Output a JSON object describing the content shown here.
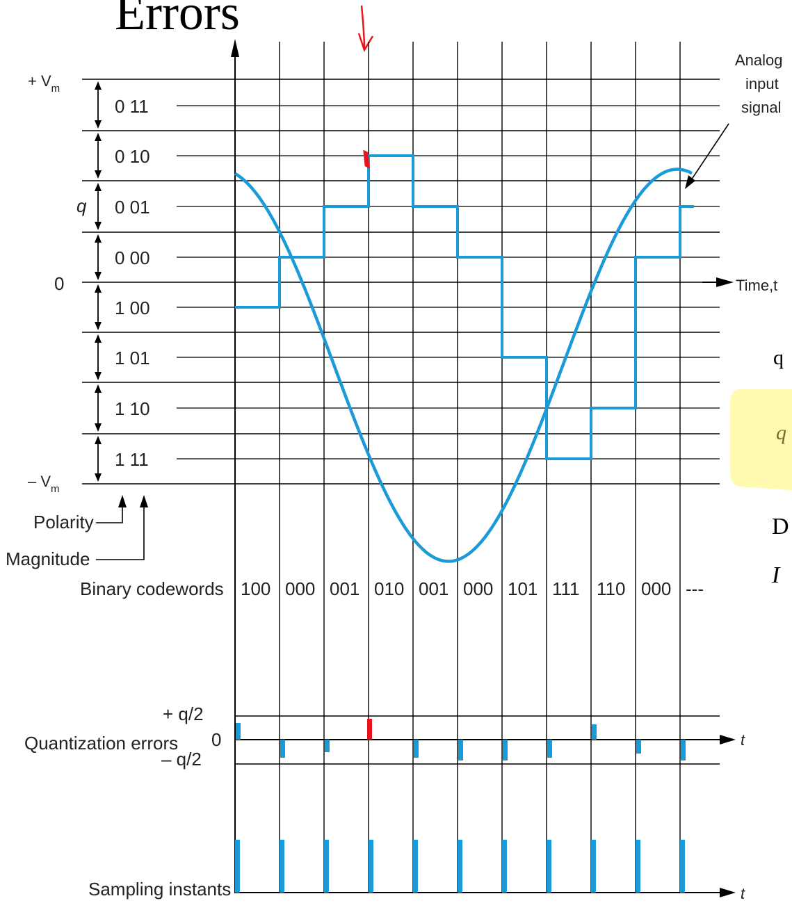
{
  "title_fragment": "Errors",
  "levels": {
    "top_label": "+ V",
    "top_sub": "m",
    "bottom_label": "– V",
    "bottom_sub": "m",
    "zero_label": "0",
    "q_label": "q",
    "codes": [
      "0 11",
      "0 10",
      "0 01",
      "0 00",
      "1 00",
      "1 01",
      "1 10",
      "1 11"
    ]
  },
  "annotations": {
    "analog_line1": "Analog",
    "analog_line2": "input",
    "analog_line3": "signal",
    "time_label": "Time,t",
    "polarity": "Polarity",
    "magnitude": "Magnitude"
  },
  "codewords": {
    "label": "Binary codewords",
    "values": [
      "100",
      "000",
      "001",
      "010",
      "001",
      "000",
      "101",
      "111",
      "110",
      "000",
      "---"
    ]
  },
  "errors": {
    "label": "Quantization errors",
    "plus_half": "+ q/2",
    "zero": "0",
    "minus_half": "– q/2",
    "t_label": "t"
  },
  "sampling": {
    "label": "Sampling instants",
    "t_label": "t"
  },
  "side_text": {
    "line1": "q",
    "line2": "q",
    "line3": "D",
    "line4": "I"
  },
  "colors": {
    "signal": "#1a9ad6",
    "marker": "#e8141a",
    "highlight": "#fffab0",
    "grid": "#000000"
  }
}
